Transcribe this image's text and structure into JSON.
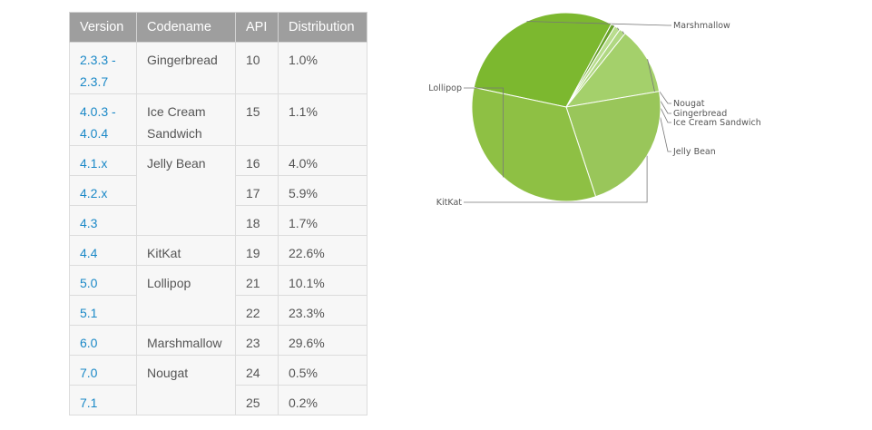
{
  "table": {
    "headers": [
      "Version",
      "Codename",
      "API",
      "Distribution"
    ],
    "rows": [
      {
        "version": "2.3.3 - 2.3.7",
        "codename": "Gingerbread",
        "codename_rowspan": 1,
        "api": "10",
        "dist": "1.0%"
      },
      {
        "version": "4.0.3 - 4.0.4",
        "codename": "Ice Cream Sandwich",
        "codename_rowspan": 1,
        "api": "15",
        "dist": "1.1%"
      },
      {
        "version": "4.1.x",
        "codename": "Jelly Bean",
        "codename_rowspan": 3,
        "api": "16",
        "dist": "4.0%"
      },
      {
        "version": "4.2.x",
        "codename": null,
        "codename_rowspan": 0,
        "api": "17",
        "dist": "5.9%"
      },
      {
        "version": "4.3",
        "codename": null,
        "codename_rowspan": 0,
        "api": "18",
        "dist": "1.7%"
      },
      {
        "version": "4.4",
        "codename": "KitKat",
        "codename_rowspan": 1,
        "api": "19",
        "dist": "22.6%"
      },
      {
        "version": "5.0",
        "codename": "Lollipop",
        "codename_rowspan": 2,
        "api": "21",
        "dist": "10.1%"
      },
      {
        "version": "5.1",
        "codename": null,
        "codename_rowspan": 0,
        "api": "22",
        "dist": "23.3%"
      },
      {
        "version": "6.0",
        "codename": "Marshmallow",
        "codename_rowspan": 1,
        "api": "23",
        "dist": "29.6%"
      },
      {
        "version": "7.0",
        "codename": "Nougat",
        "codename_rowspan": 2,
        "api": "24",
        "dist": "0.5%"
      },
      {
        "version": "7.1",
        "codename": null,
        "codename_rowspan": 0,
        "api": "25",
        "dist": "0.2%"
      }
    ]
  },
  "chart_data": {
    "type": "pie",
    "categories": [
      "Marshmallow",
      "Nougat",
      "Gingerbread",
      "Ice Cream Sandwich",
      "Jelly Bean",
      "KitKat",
      "Lollipop"
    ],
    "values": [
      29.6,
      0.7,
      1.0,
      1.1,
      11.6,
      22.6,
      33.4
    ],
    "colors": [
      "#7cb82f",
      "#68a22a",
      "#b9dd8e",
      "#b0d882",
      "#a4d06b",
      "#99c65a",
      "#8ec044"
    ],
    "labels_shown": true,
    "legend": "none"
  }
}
